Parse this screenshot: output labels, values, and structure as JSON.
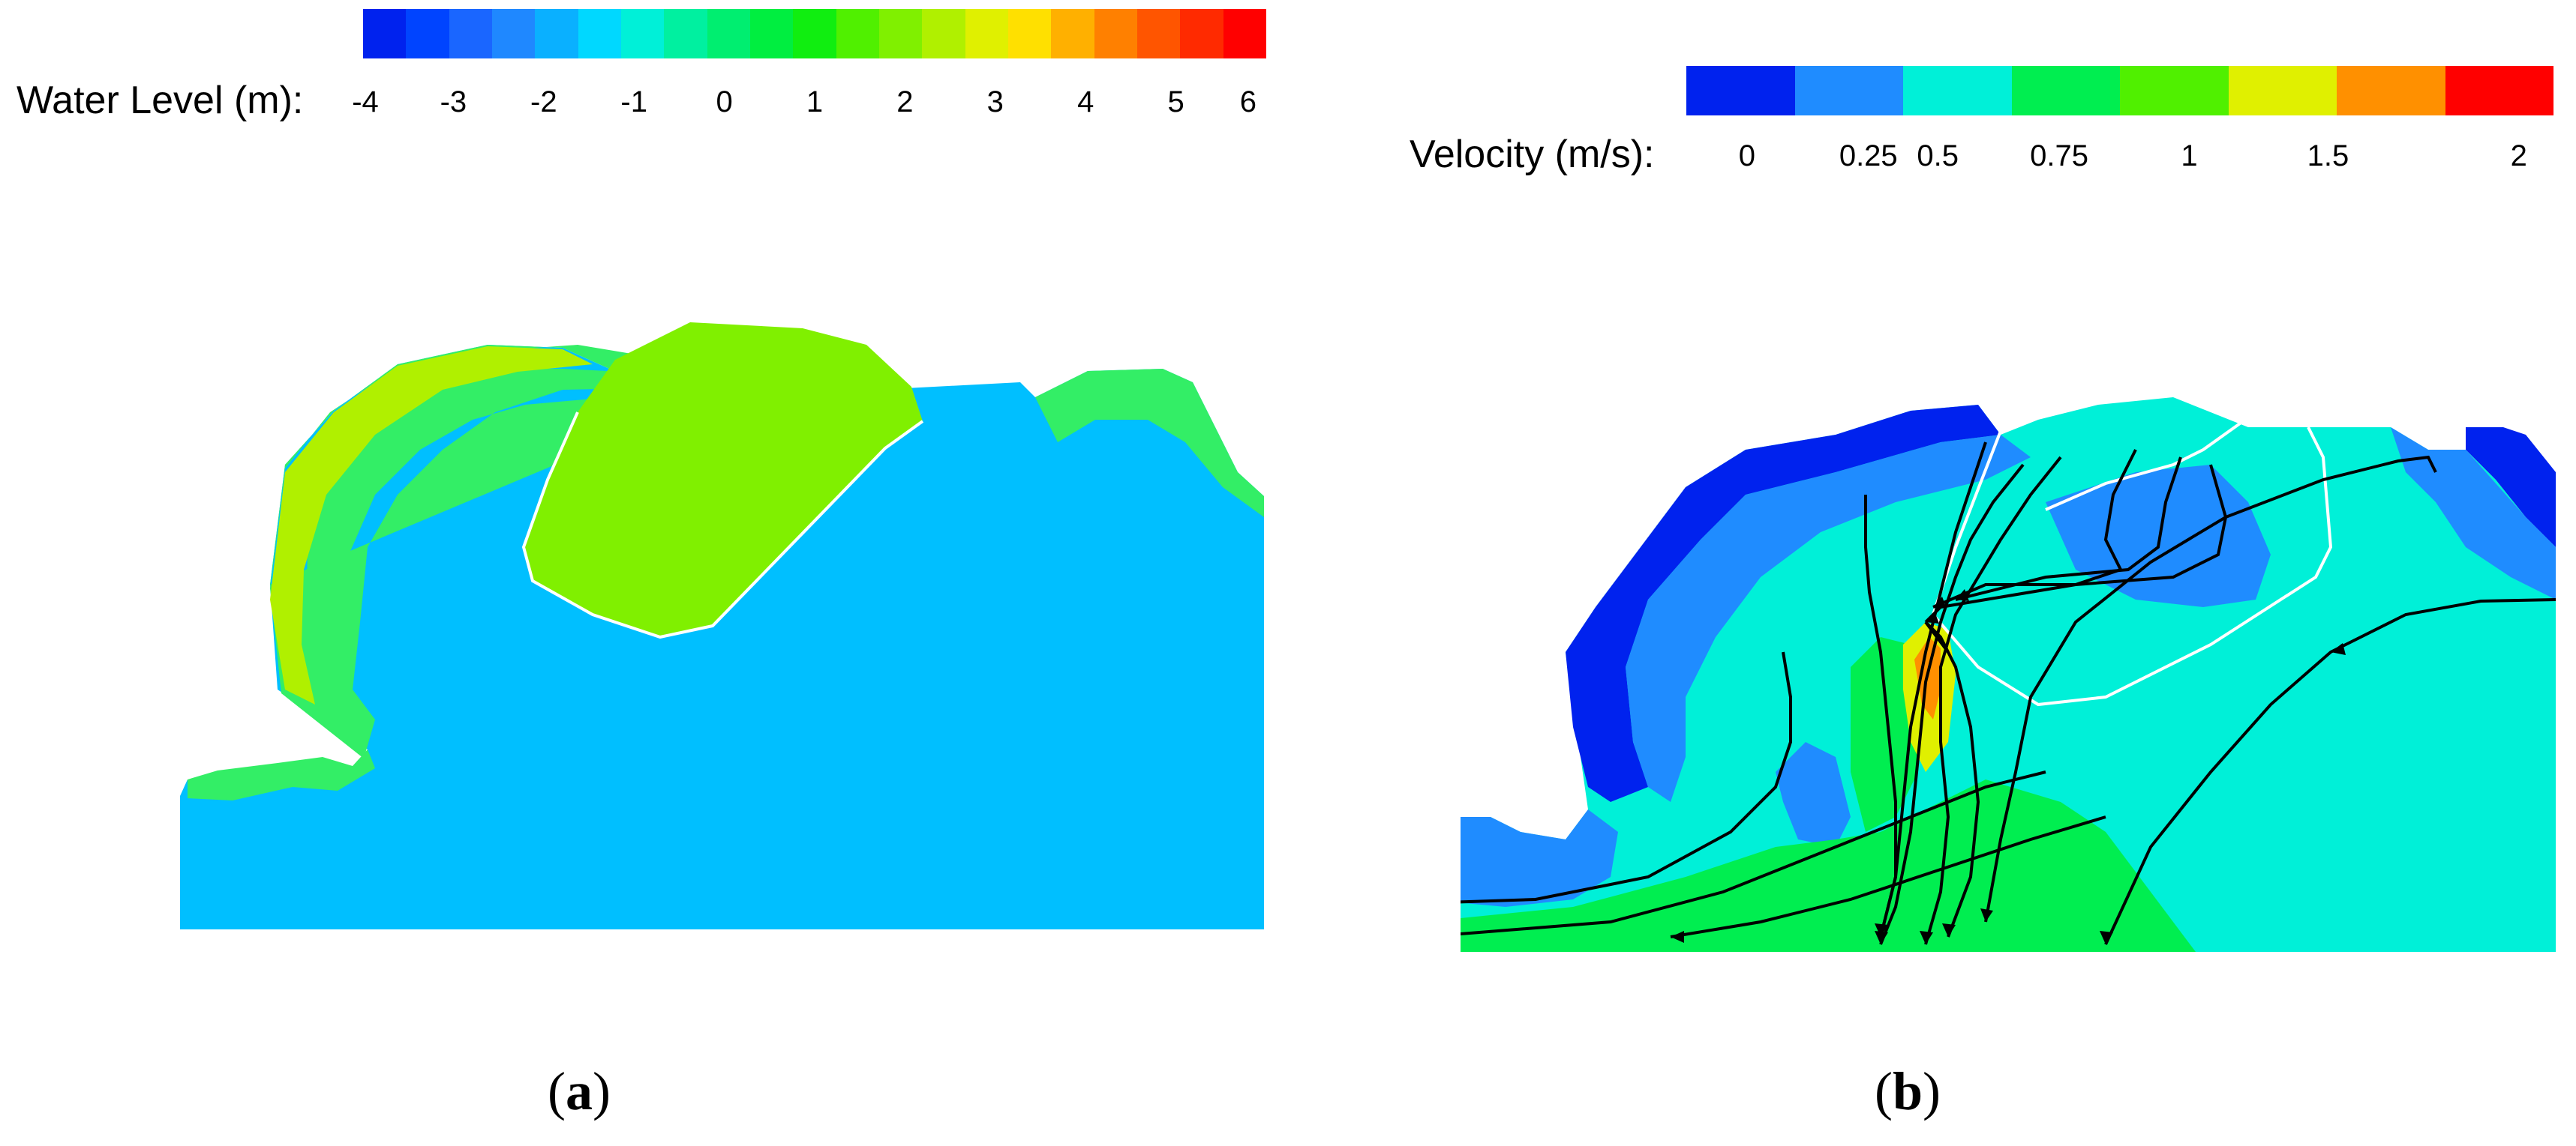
{
  "panel_a": {
    "colorbar": {
      "title": "Water Level (m):",
      "ticks": [
        "-4",
        "-3",
        "-2",
        "-1",
        "0",
        "1",
        "2",
        "3",
        "4",
        "5",
        "6"
      ],
      "colors": [
        "#0022ee",
        "#0044ff",
        "#1a66ff",
        "#1f88ff",
        "#0ab0ff",
        "#00d8ff",
        "#00f0d8",
        "#00f0a0",
        "#00ee70",
        "#00ee40",
        "#10ee10",
        "#50f000",
        "#80f000",
        "#b0f000",
        "#e0f000",
        "#ffe000",
        "#ffb000",
        "#ff8000",
        "#ff5500",
        "#ff2a00",
        "#ff0000"
      ],
      "tick_positions": [
        0.0025,
        0.1,
        0.2,
        0.3,
        0.4,
        0.5,
        0.6,
        0.7,
        0.8,
        0.9,
        0.98
      ]
    },
    "map_colors": {
      "water": "#00bfff",
      "island": "#80f000",
      "shore_light": "#33ee66",
      "shore_mid": "#00ddcc",
      "shore_yellow": "#b0f000"
    },
    "caption": {
      "open": "(",
      "letter": "a",
      "close": ")"
    }
  },
  "panel_b": {
    "colorbar": {
      "title": "Velocity (m/s):",
      "ticks": [
        "0",
        "0.25",
        "0.5",
        "0.75",
        "1",
        "1.5",
        "2"
      ],
      "colors": [
        "#0022ee",
        "#1f8cff",
        "#00f0d8",
        "#00ee50",
        "#50f000",
        "#e0f000",
        "#ff9000",
        "#ff0000"
      ],
      "tick_positions": [
        0.07,
        0.21,
        0.29,
        0.43,
        0.58,
        0.74,
        0.96
      ]
    },
    "map_colors": {
      "deep": "#0022ee",
      "low": "#1f8cff",
      "mid": "#00f0d8",
      "green": "#00ee50",
      "yellow": "#e0f000",
      "orange": "#ff9000",
      "streamline": "#000000",
      "outline": "#ffffff"
    },
    "caption": {
      "open": "(",
      "letter": "b",
      "close": ")"
    }
  }
}
